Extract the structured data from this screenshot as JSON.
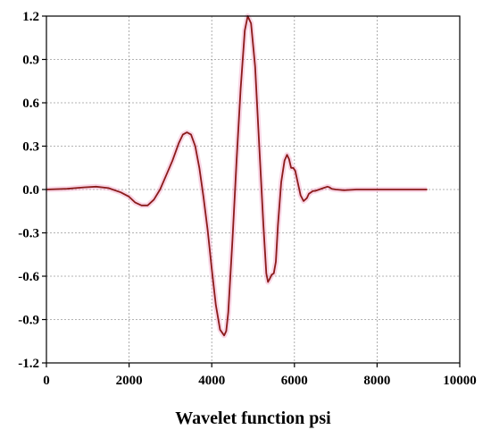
{
  "chart_data": {
    "type": "line",
    "xlabel": "Wavelet function psi",
    "ylabel": "",
    "xlim": [
      0,
      10000
    ],
    "ylim": [
      -1.2,
      1.2
    ],
    "x_ticks": [
      0,
      2000,
      4000,
      6000,
      8000,
      10000
    ],
    "y_ticks": [
      -1.2,
      -0.9,
      -0.6,
      -0.3,
      0.0,
      0.3,
      0.6,
      0.9,
      1.2
    ],
    "x_tick_labels": [
      "0",
      "2000",
      "4000",
      "6000",
      "8000",
      "10000"
    ],
    "y_tick_labels": [
      "-1.2",
      "-0.9",
      "-0.6",
      "-0.3",
      "0.0",
      "0.3",
      "0.6",
      "0.9",
      "1.2"
    ],
    "grid": true,
    "line_color": "#8b1a1a",
    "shadow_color": "#f2a6c8",
    "series": [
      {
        "x": [
          0,
          500,
          900,
          1200,
          1500,
          1800,
          2000,
          2150,
          2300,
          2450,
          2600,
          2750,
          2900,
          3050,
          3200,
          3300,
          3400,
          3500,
          3600,
          3700,
          3800,
          3900,
          4000,
          4100,
          4200,
          4300,
          4350,
          4400,
          4500,
          4600,
          4700,
          4800,
          4870,
          4950,
          5050,
          5150,
          5250,
          5320,
          5360,
          5400,
          5450,
          5500,
          5550,
          5600,
          5680,
          5760,
          5820,
          5870,
          5920,
          5970,
          6020,
          6080,
          6150,
          6220,
          6300,
          6350,
          6400,
          6450,
          6500,
          6600,
          6700,
          6800,
          6850,
          6900,
          7000,
          7200,
          7500,
          8000,
          8500,
          9000,
          9200
        ],
        "y": [
          0.0,
          0.005,
          0.015,
          0.02,
          0.01,
          -0.02,
          -0.05,
          -0.09,
          -0.11,
          -0.11,
          -0.07,
          0.0,
          0.1,
          0.2,
          0.32,
          0.38,
          0.395,
          0.38,
          0.3,
          0.15,
          -0.05,
          -0.28,
          -0.55,
          -0.8,
          -0.97,
          -1.01,
          -0.98,
          -0.85,
          -0.35,
          0.2,
          0.7,
          1.1,
          1.2,
          1.15,
          0.85,
          0.3,
          -0.25,
          -0.58,
          -0.64,
          -0.62,
          -0.59,
          -0.58,
          -0.5,
          -0.25,
          0.05,
          0.2,
          0.24,
          0.21,
          0.15,
          0.15,
          0.13,
          0.05,
          -0.04,
          -0.08,
          -0.06,
          -0.03,
          -0.02,
          -0.01,
          -0.01,
          0.0,
          0.01,
          0.02,
          0.015,
          0.005,
          0.0,
          -0.005,
          0.0,
          0.0,
          0.0,
          0.0,
          0.0
        ]
      }
    ]
  }
}
